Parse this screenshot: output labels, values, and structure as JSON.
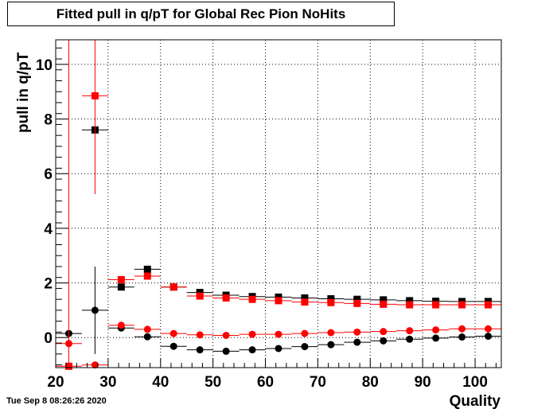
{
  "chart_data": {
    "type": "scatter",
    "title": "Fitted pull in q/pT for Global Rec Pion NoHits",
    "xlabel": "Quality",
    "ylabel": "pull in q/pT",
    "xlim": [
      20,
      105
    ],
    "ylim": [
      -1.1,
      10.9
    ],
    "xticks": [
      20,
      30,
      40,
      50,
      60,
      70,
      80,
      90,
      100
    ],
    "yticks": [
      0,
      2,
      4,
      6,
      8,
      10
    ],
    "grid": true,
    "legend": "none",
    "timestamp": "Tue Sep  8 08:26:26 2020",
    "series": [
      {
        "marker": "square",
        "color": "#000000",
        "x": [
          27.5,
          32.5,
          37.5,
          42.5,
          47.5,
          52.5,
          57.5,
          62.5,
          67.5,
          72.5,
          77.5,
          82.5,
          87.5,
          92.5,
          97.5,
          102.5
        ],
        "y": [
          7.6,
          1.85,
          2.5,
          1.85,
          1.65,
          1.55,
          1.5,
          1.48,
          1.45,
          1.42,
          1.4,
          1.38,
          1.35,
          1.33,
          1.32,
          1.32
        ],
        "xerr": 2.5,
        "yerr": [
          0.05,
          0.05,
          0.05,
          0.03,
          0.03,
          0.03,
          0.02,
          0.02,
          0.02,
          0.02,
          0.02,
          0.02,
          0.02,
          0.02,
          0.02,
          0.02
        ]
      },
      {
        "marker": "square",
        "color": "#ff0000",
        "x": [
          22.5,
          27.5,
          32.5,
          37.5,
          42.5,
          47.5,
          52.5,
          57.5,
          62.5,
          67.5,
          72.5,
          77.5,
          82.5,
          87.5,
          92.5,
          97.5,
          102.5
        ],
        "y": [
          -1.05,
          8.85,
          2.12,
          2.25,
          1.85,
          1.52,
          1.45,
          1.4,
          1.35,
          1.3,
          1.28,
          1.25,
          1.22,
          1.2,
          1.2,
          1.2,
          1.2
        ],
        "xerr": 2.5,
        "yerr": [
          0,
          3.6,
          0.05,
          0.05,
          0.03,
          0.03,
          0.03,
          0.02,
          0.02,
          0.02,
          0.02,
          0.02,
          0.02,
          0.02,
          0.02,
          0.02,
          0.02
        ]
      },
      {
        "marker": "circle",
        "color": "#000000",
        "x": [
          22.5,
          27.5,
          32.5,
          37.5,
          42.5,
          47.5,
          52.5,
          57.5,
          62.5,
          67.5,
          72.5,
          77.5,
          82.5,
          87.5,
          92.5,
          97.5,
          102.5
        ],
        "y": [
          0.15,
          1.0,
          0.35,
          0.03,
          -0.32,
          -0.45,
          -0.5,
          -0.45,
          -0.4,
          -0.33,
          -0.26,
          -0.17,
          -0.12,
          -0.06,
          -0.02,
          0.02,
          0.05
        ],
        "xerr": 2.5,
        "yerr": [
          0.05,
          1.6,
          0.05,
          0.04,
          0.03,
          0.03,
          0.03,
          0.02,
          0.02,
          0.02,
          0.02,
          0.02,
          0.02,
          0.02,
          0.02,
          0.02,
          0.02
        ]
      },
      {
        "marker": "circle",
        "color": "#ff0000",
        "x": [
          22.5,
          27.5,
          32.5,
          37.5,
          42.5,
          47.5,
          52.5,
          57.5,
          62.5,
          67.5,
          72.5,
          77.5,
          82.5,
          87.5,
          92.5,
          97.5,
          102.5
        ],
        "y": [
          -0.22,
          -1.0,
          0.45,
          0.3,
          0.15,
          0.1,
          0.08,
          0.12,
          0.12,
          0.15,
          0.18,
          0.2,
          0.22,
          0.25,
          0.28,
          0.32,
          0.32
        ],
        "xerr": 2.5,
        "yerr": [
          11.5,
          0,
          0.05,
          0.04,
          0.03,
          0.03,
          0.03,
          0.02,
          0.02,
          0.02,
          0.02,
          0.02,
          0.02,
          0.02,
          0.02,
          0.02,
          0.02
        ]
      }
    ]
  }
}
